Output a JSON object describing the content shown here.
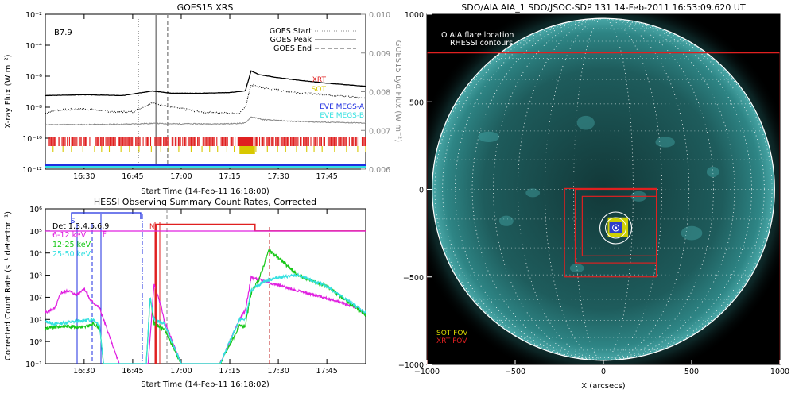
{
  "chart_data": [
    {
      "id": "goes",
      "type": "line",
      "title": "GOES15 XRS",
      "xlabel": "Start Time (14-Feb-11 16:18:00)",
      "ylabel_left": "X-ray Flux (W m⁻²)",
      "ylabel_right": "GOES15 Lyα Flux (W m⁻²)",
      "xlim": [
        16.3,
        17.95
      ],
      "x_ticks": [
        16.5,
        16.75,
        17.0,
        17.25,
        17.5,
        17.75
      ],
      "x_tick_labels": [
        "16:30",
        "16:45",
        "17:00",
        "17:15",
        "17:30",
        "17:45"
      ],
      "ylim_log": [
        -12,
        -2
      ],
      "y_ticks": [
        -12,
        -10,
        -8,
        -6,
        -4,
        -2
      ],
      "y_tick_labels": [
        "10⁻¹²",
        "10⁻¹⁰",
        "10⁻⁸",
        "10⁻⁶",
        "10⁻⁴",
        "10⁻²"
      ],
      "y2lim": [
        0.006,
        0.01
      ],
      "y2_ticks": [
        0.006,
        0.007,
        0.008,
        0.009,
        0.01
      ],
      "y2_tick_labels": [
        "0.006",
        "0.007",
        "0.008",
        "0.009",
        "0.010"
      ],
      "class_label": "B7.9",
      "goes_start": 16.78,
      "goes_peak": 16.87,
      "goes_end": 16.93,
      "legend": [
        "GOES Start",
        "GOES Peak",
        "GOES End"
      ],
      "legend2": [
        {
          "name": "XRT",
          "color": "#e02020"
        },
        {
          "name": "SOT",
          "color": "#d8c800"
        },
        {
          "name": "EVE MEGS-A",
          "color": "#1e2ee0"
        },
        {
          "name": "EVE MEGS-B",
          "color": "#33e0e0"
        }
      ],
      "series": [
        {
          "name": "GOES long",
          "log": true,
          "x": [
            16.3,
            16.5,
            16.7,
            16.85,
            16.95,
            17.1,
            17.25,
            17.33,
            17.36,
            17.4,
            17.5,
            17.6,
            17.75,
            17.95
          ],
          "values": [
            -7.25,
            -7.2,
            -7.25,
            -6.95,
            -7.1,
            -7.1,
            -7.05,
            -6.95,
            -5.65,
            -5.9,
            -6.1,
            -6.25,
            -6.45,
            -6.65
          ]
        },
        {
          "name": "GOES short",
          "log": true,
          "x": [
            16.3,
            16.35,
            16.5,
            16.65,
            16.75,
            16.85,
            16.95,
            17.1,
            17.3,
            17.33,
            17.36,
            17.4,
            17.55,
            17.75,
            17.95
          ],
          "values": [
            -8.4,
            -8.2,
            -8.1,
            -8.3,
            -8.3,
            -7.7,
            -8.0,
            -8.3,
            -8.4,
            -8.0,
            -6.55,
            -6.7,
            -7.0,
            -7.2,
            -7.4
          ]
        },
        {
          "name": "GOES Lyα",
          "log": false,
          "x": [
            16.3,
            16.5,
            16.7,
            16.85,
            16.95,
            17.1,
            17.25,
            17.33,
            17.36,
            17.42,
            17.55,
            17.75,
            17.95
          ],
          "values": [
            0.00715,
            0.00715,
            0.00716,
            0.00718,
            0.00717,
            0.00717,
            0.00717,
            0.00719,
            0.00735,
            0.00728,
            0.00724,
            0.00721,
            0.00719
          ]
        }
      ]
    },
    {
      "id": "hessi",
      "type": "line",
      "title": "HESSI Observing Summary Count Rates, Corrected",
      "xlabel": "Start Time (14-Feb-11 16:18:02)",
      "ylabel": "Corrected Count Rate (s⁻¹ detector⁻¹)",
      "xlim": [
        16.3,
        17.95
      ],
      "x_ticks": [
        16.5,
        16.75,
        17.0,
        17.25,
        17.5,
        17.75
      ],
      "x_tick_labels": [
        "16:30",
        "16:45",
        "17:00",
        "17:15",
        "17:30",
        "17:45"
      ],
      "ylim_log": [
        -1,
        6
      ],
      "y_ticks": [
        -1,
        0,
        1,
        2,
        3,
        4,
        5,
        6
      ],
      "y_tick_labels": [
        "10⁻¹",
        "10⁰",
        "10¹",
        "10²",
        "10³",
        "10⁴",
        "10⁵",
        "10⁶"
      ],
      "detector_label": "Det 1,3,4,5,6,9",
      "flag_labels": [
        "S",
        "F",
        "N"
      ],
      "series": [
        {
          "name": "Det 1,3,4,5,6,9",
          "color": "#000000",
          "x": [],
          "values": []
        },
        {
          "name": "6-12 keV",
          "color": "#e020e0",
          "x": [
            16.3,
            16.35,
            16.38,
            16.42,
            16.46,
            16.5,
            16.53,
            16.58,
            16.68,
            16.75,
            16.8,
            16.83,
            16.86,
            16.9,
            16.91,
            17.0,
            17.1,
            17.2,
            17.3,
            17.33,
            17.36,
            17.4,
            17.5,
            17.6,
            17.75,
            17.9,
            17.95
          ],
          "values": [
            1.3,
            1.5,
            2.2,
            2.3,
            2.1,
            2.4,
            1.9,
            1.5,
            -1,
            -1,
            -1,
            -1,
            2.6,
            1.5,
            1.0,
            -1,
            -1,
            -1,
            1.0,
            1.4,
            2.9,
            2.8,
            2.55,
            2.3,
            1.95,
            1.55,
            1.2
          ]
        },
        {
          "name": "12-25 keV",
          "color": "#18c818",
          "x": [
            16.3,
            16.4,
            16.5,
            16.55,
            16.58,
            16.6,
            16.68,
            16.8,
            16.82,
            16.84,
            16.86,
            16.9,
            16.91,
            17.0,
            17.1,
            17.2,
            17.3,
            17.33,
            17.36,
            17.4,
            17.45,
            17.5,
            17.6,
            17.75,
            17.95
          ],
          "values": [
            0.6,
            0.7,
            0.65,
            0.8,
            0.6,
            -1,
            -1,
            -1,
            -1,
            2.0,
            0.8,
            0.6,
            0.6,
            -1,
            -1,
            -1,
            0.7,
            0.7,
            2.2,
            2.8,
            4.1,
            3.8,
            3.0,
            2.5,
            1.2
          ]
        },
        {
          "name": "25-50 keV",
          "color": "#33e0e0",
          "x": [
            16.3,
            16.35,
            16.45,
            16.5,
            16.55,
            16.58,
            16.6,
            16.68,
            16.8,
            16.82,
            16.84,
            16.86,
            16.9,
            16.91,
            17.0,
            17.1,
            17.2,
            17.3,
            17.33,
            17.36,
            17.42,
            17.5,
            17.6,
            17.75,
            17.95
          ],
          "values": [
            0.9,
            0.8,
            0.9,
            0.95,
            1.0,
            0.7,
            -1,
            -1,
            -1,
            -1,
            2.0,
            1.0,
            0.85,
            0.85,
            -1,
            -1,
            -1,
            1.0,
            1.0,
            2.3,
            2.7,
            2.9,
            3.0,
            2.5,
            1.3
          ]
        },
        {
          "name": "attenuator",
          "color": "#e02020",
          "x": [
            16.87,
            16.87,
            17.38,
            17.38,
            17.95
          ],
          "values": [
            -1,
            5.3,
            5.3,
            5.0,
            5.0
          ]
        }
      ],
      "legend": [
        "Det 1,3,4,5,6,9",
        "6-12 keV",
        "12-25 keV",
        "25-50 keV"
      ]
    },
    {
      "id": "aia",
      "type": "scatter",
      "title": "SDO/AIA AIA_1 SDO/JSOC-SDP 131 14-Feb-2011 16:53:09.620 UT",
      "xlabel": "X (arcsecs)",
      "ylabel": "",
      "xlim": [
        -1000,
        1000
      ],
      "ylim": [
        -1000,
        1000
      ],
      "x_ticks": [
        -1000,
        -500,
        0,
        500,
        1000
      ],
      "y_ticks": [
        -1000,
        -500,
        0,
        500,
        1000
      ],
      "x_tick_labels": [
        "−1000",
        "−500",
        "0",
        "500",
        "1000"
      ],
      "y_tick_labels": [
        "−1000",
        "−500",
        "0",
        "500",
        "1000"
      ],
      "legend_top": [
        "O AIA flare location",
        "RHESSI contours"
      ],
      "legend_bottom": [
        {
          "name": "SOT FOV",
          "color": "#d8d800"
        },
        {
          "name": "XRT FOV",
          "color": "#e02020"
        }
      ],
      "solar_radius": 970,
      "flare_center": [
        70,
        -220
      ],
      "xrt_fovs": [
        [
          -1000,
          -1000,
          1000,
          780
        ],
        [
          -220,
          -500,
          300,
          5
        ],
        [
          -160,
          -420,
          300,
          0
        ],
        [
          -120,
          -380,
          300,
          -40
        ]
      ],
      "sot_fov": [
        25,
        -270,
        140,
        -160
      ]
    }
  ]
}
